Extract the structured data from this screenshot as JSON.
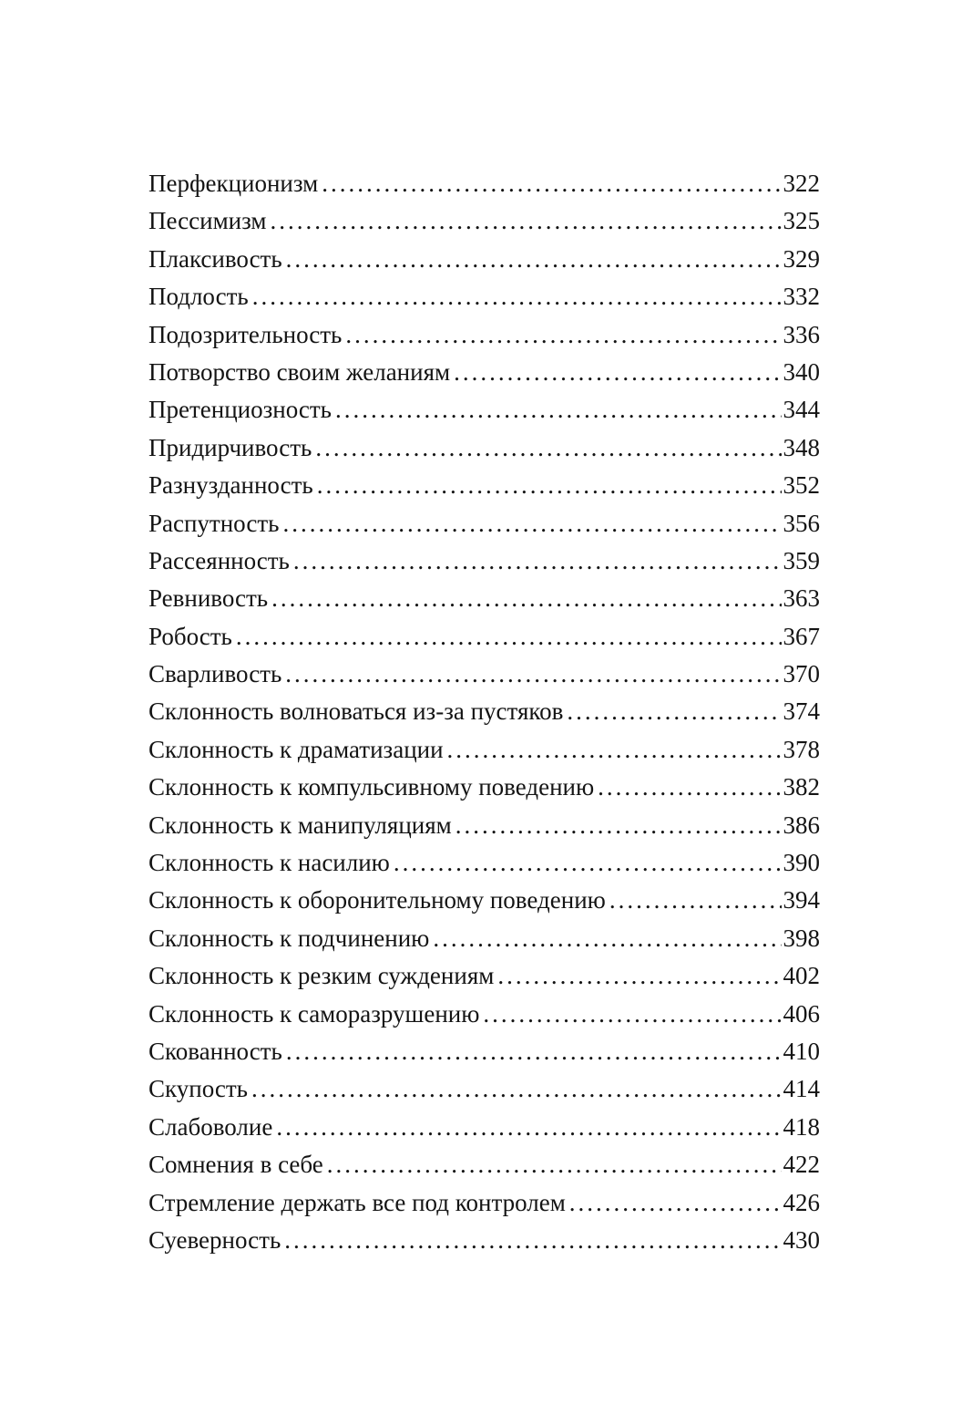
{
  "colors": {
    "text": "#141414",
    "background": "#ffffff"
  },
  "toc": {
    "entries": [
      {
        "title": "Перфекционизм",
        "page": "322"
      },
      {
        "title": "Пессимизм",
        "page": "325"
      },
      {
        "title": "Плаксивость",
        "page": "329"
      },
      {
        "title": "Подлость",
        "page": "332"
      },
      {
        "title": "Подозрительность",
        "page": "336"
      },
      {
        "title": "Потворство своим желаниям",
        "page": "340"
      },
      {
        "title": "Претенциозность",
        "page": "344"
      },
      {
        "title": "Придирчивость",
        "page": "348"
      },
      {
        "title": "Разнузданность",
        "page": "352"
      },
      {
        "title": "Распутность",
        "page": "356"
      },
      {
        "title": "Рассеянность",
        "page": "359"
      },
      {
        "title": "Ревнивость",
        "page": "363"
      },
      {
        "title": "Робость",
        "page": "367"
      },
      {
        "title": "Сварливость",
        "page": "370"
      },
      {
        "title": "Склонность волноваться из-за пустяков",
        "page": "374"
      },
      {
        "title": "Склонность к драматизации",
        "page": "378"
      },
      {
        "title": "Склонность к компульсивному поведению",
        "page": "382"
      },
      {
        "title": "Склонность к манипуляциям",
        "page": "386"
      },
      {
        "title": "Склонность к насилию",
        "page": "390"
      },
      {
        "title": "Склонность к оборонительному поведению",
        "page": "394"
      },
      {
        "title": "Склонность к подчинению",
        "page": "398"
      },
      {
        "title": "Склонность к резким суждениям",
        "page": "402"
      },
      {
        "title": "Склонность к саморазрушению",
        "page": "406"
      },
      {
        "title": "Скованность",
        "page": "410"
      },
      {
        "title": "Скупость",
        "page": "414"
      },
      {
        "title": "Слабоволие",
        "page": "418"
      },
      {
        "title": "Сомнения в себе",
        "page": "422"
      },
      {
        "title": "Стремление держать все под контролем",
        "page": "426"
      },
      {
        "title": "Суеверность",
        "page": "430"
      }
    ]
  }
}
